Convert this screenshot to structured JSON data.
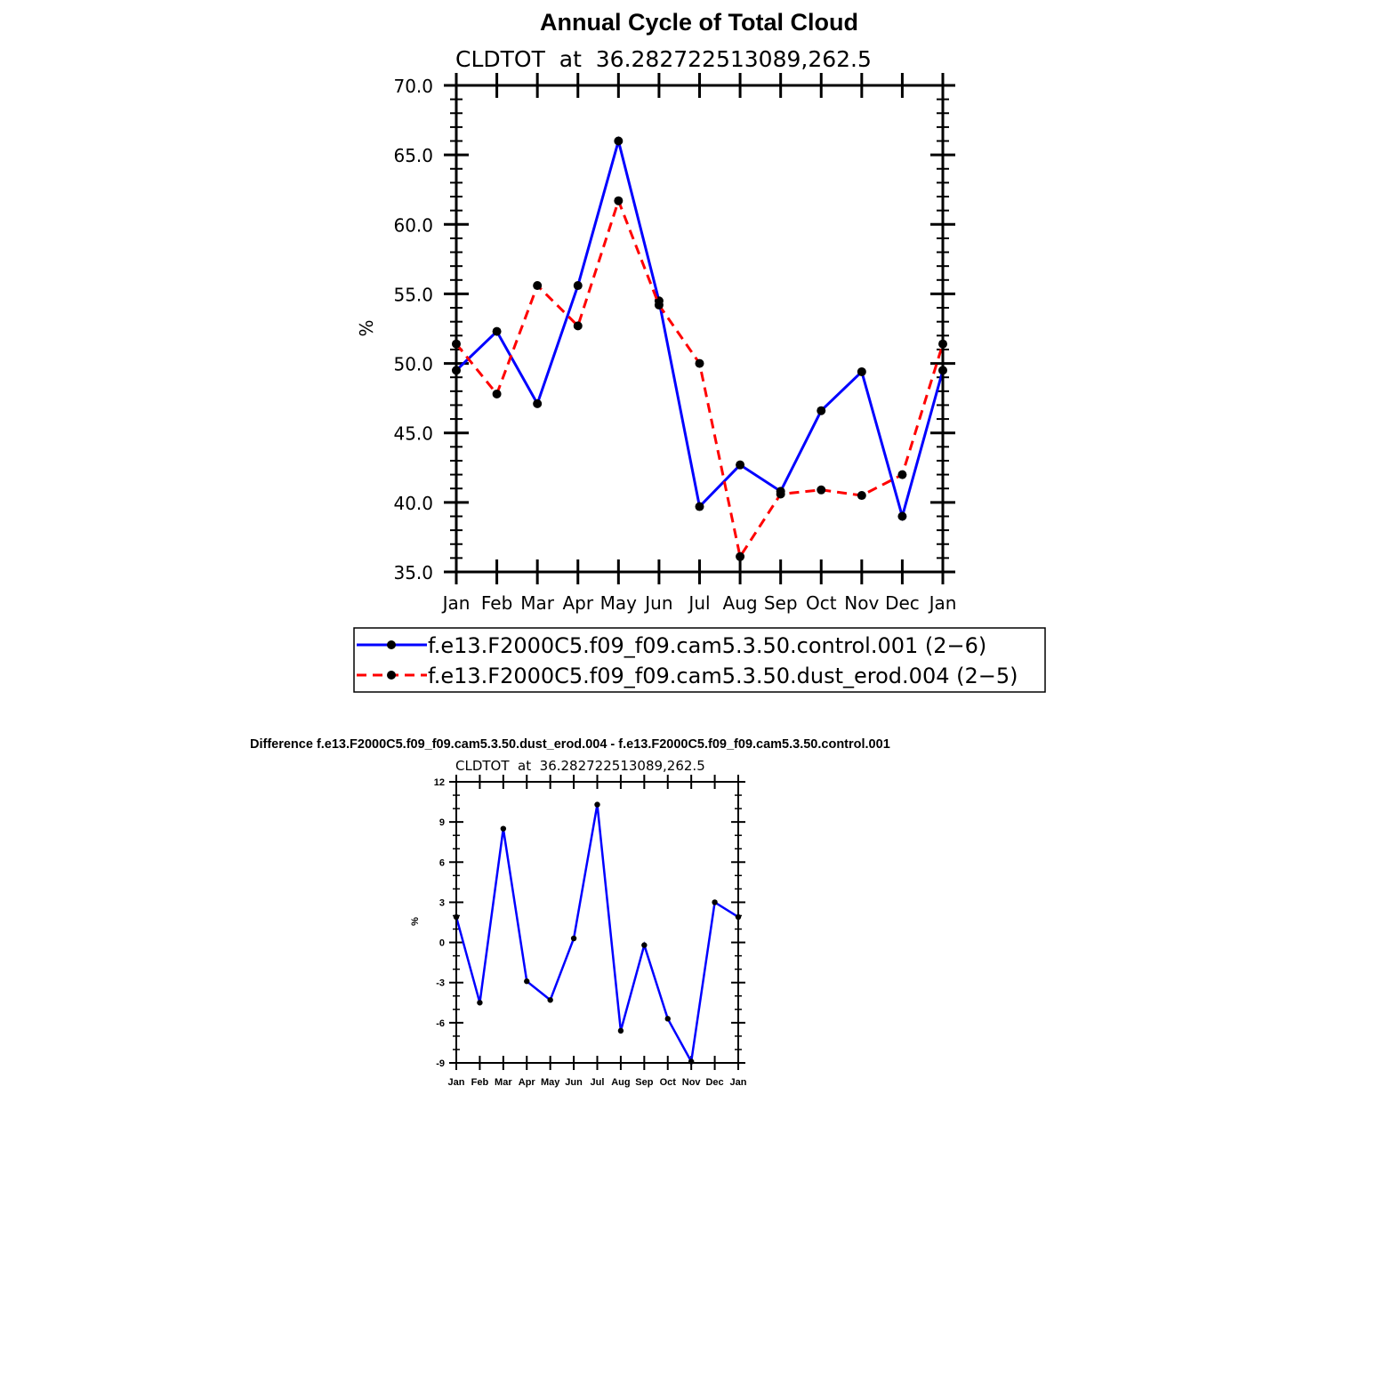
{
  "chart_data": [
    {
      "type": "line",
      "title": "Annual Cycle of Total Cloud",
      "subtitle": "CLDTOT  at  36.282722513089,262.5",
      "ylabel": "%",
      "xlabel": "",
      "ylim": [
        35,
        70
      ],
      "yticks": [
        "35.0",
        "40.0",
        "45.0",
        "50.0",
        "55.0",
        "60.0",
        "65.0",
        "70.0"
      ],
      "categories": [
        "Jan",
        "Feb",
        "Mar",
        "Apr",
        "May",
        "Jun",
        "Jul",
        "Aug",
        "Sep",
        "Oct",
        "Nov",
        "Dec",
        "Jan"
      ],
      "series": [
        {
          "name": "f.e13.F2000C5.f09_f09.cam5.3.50.control.001 (2−6)",
          "color": "#0000ff",
          "dash": "solid",
          "values": [
            49.5,
            52.3,
            47.1,
            55.6,
            66.0,
            54.5,
            39.7,
            42.7,
            40.8,
            46.6,
            49.4,
            39.0,
            49.5
          ]
        },
        {
          "name": "f.e13.F2000C5.f09_f09.cam5.3.50.dust_erod.004 (2−5)",
          "color": "#ff0000",
          "dash": "dashed",
          "values": [
            51.4,
            47.8,
            55.6,
            52.7,
            61.7,
            54.2,
            50.0,
            36.1,
            40.6,
            40.9,
            40.5,
            42.0,
            51.4
          ]
        }
      ],
      "legend": "below"
    },
    {
      "type": "line",
      "title": "Difference f.e13.F2000C5.f09_f09.cam5.3.50.dust_erod.004 - f.e13.F2000C5.f09_f09.cam5.3.50.control.001",
      "subtitle": "CLDTOT  at  36.282722513089,262.5",
      "ylabel": "%",
      "xlabel": "",
      "ylim": [
        -9,
        12
      ],
      "yticks": [
        "-9",
        "-6",
        "-3",
        "0",
        "3",
        "6",
        "9",
        "12"
      ],
      "categories": [
        "Jan",
        "Feb",
        "Mar",
        "Apr",
        "May",
        "Jun",
        "Jul",
        "Aug",
        "Sep",
        "Oct",
        "Nov",
        "Dec",
        "Jan"
      ],
      "series": [
        {
          "name": "difference",
          "color": "#0000ff",
          "dash": "solid",
          "values": [
            1.9,
            -4.5,
            8.5,
            -2.9,
            -4.3,
            0.3,
            10.3,
            -6.6,
            -0.2,
            -5.7,
            -8.9,
            3.0,
            1.9
          ]
        }
      ]
    }
  ]
}
